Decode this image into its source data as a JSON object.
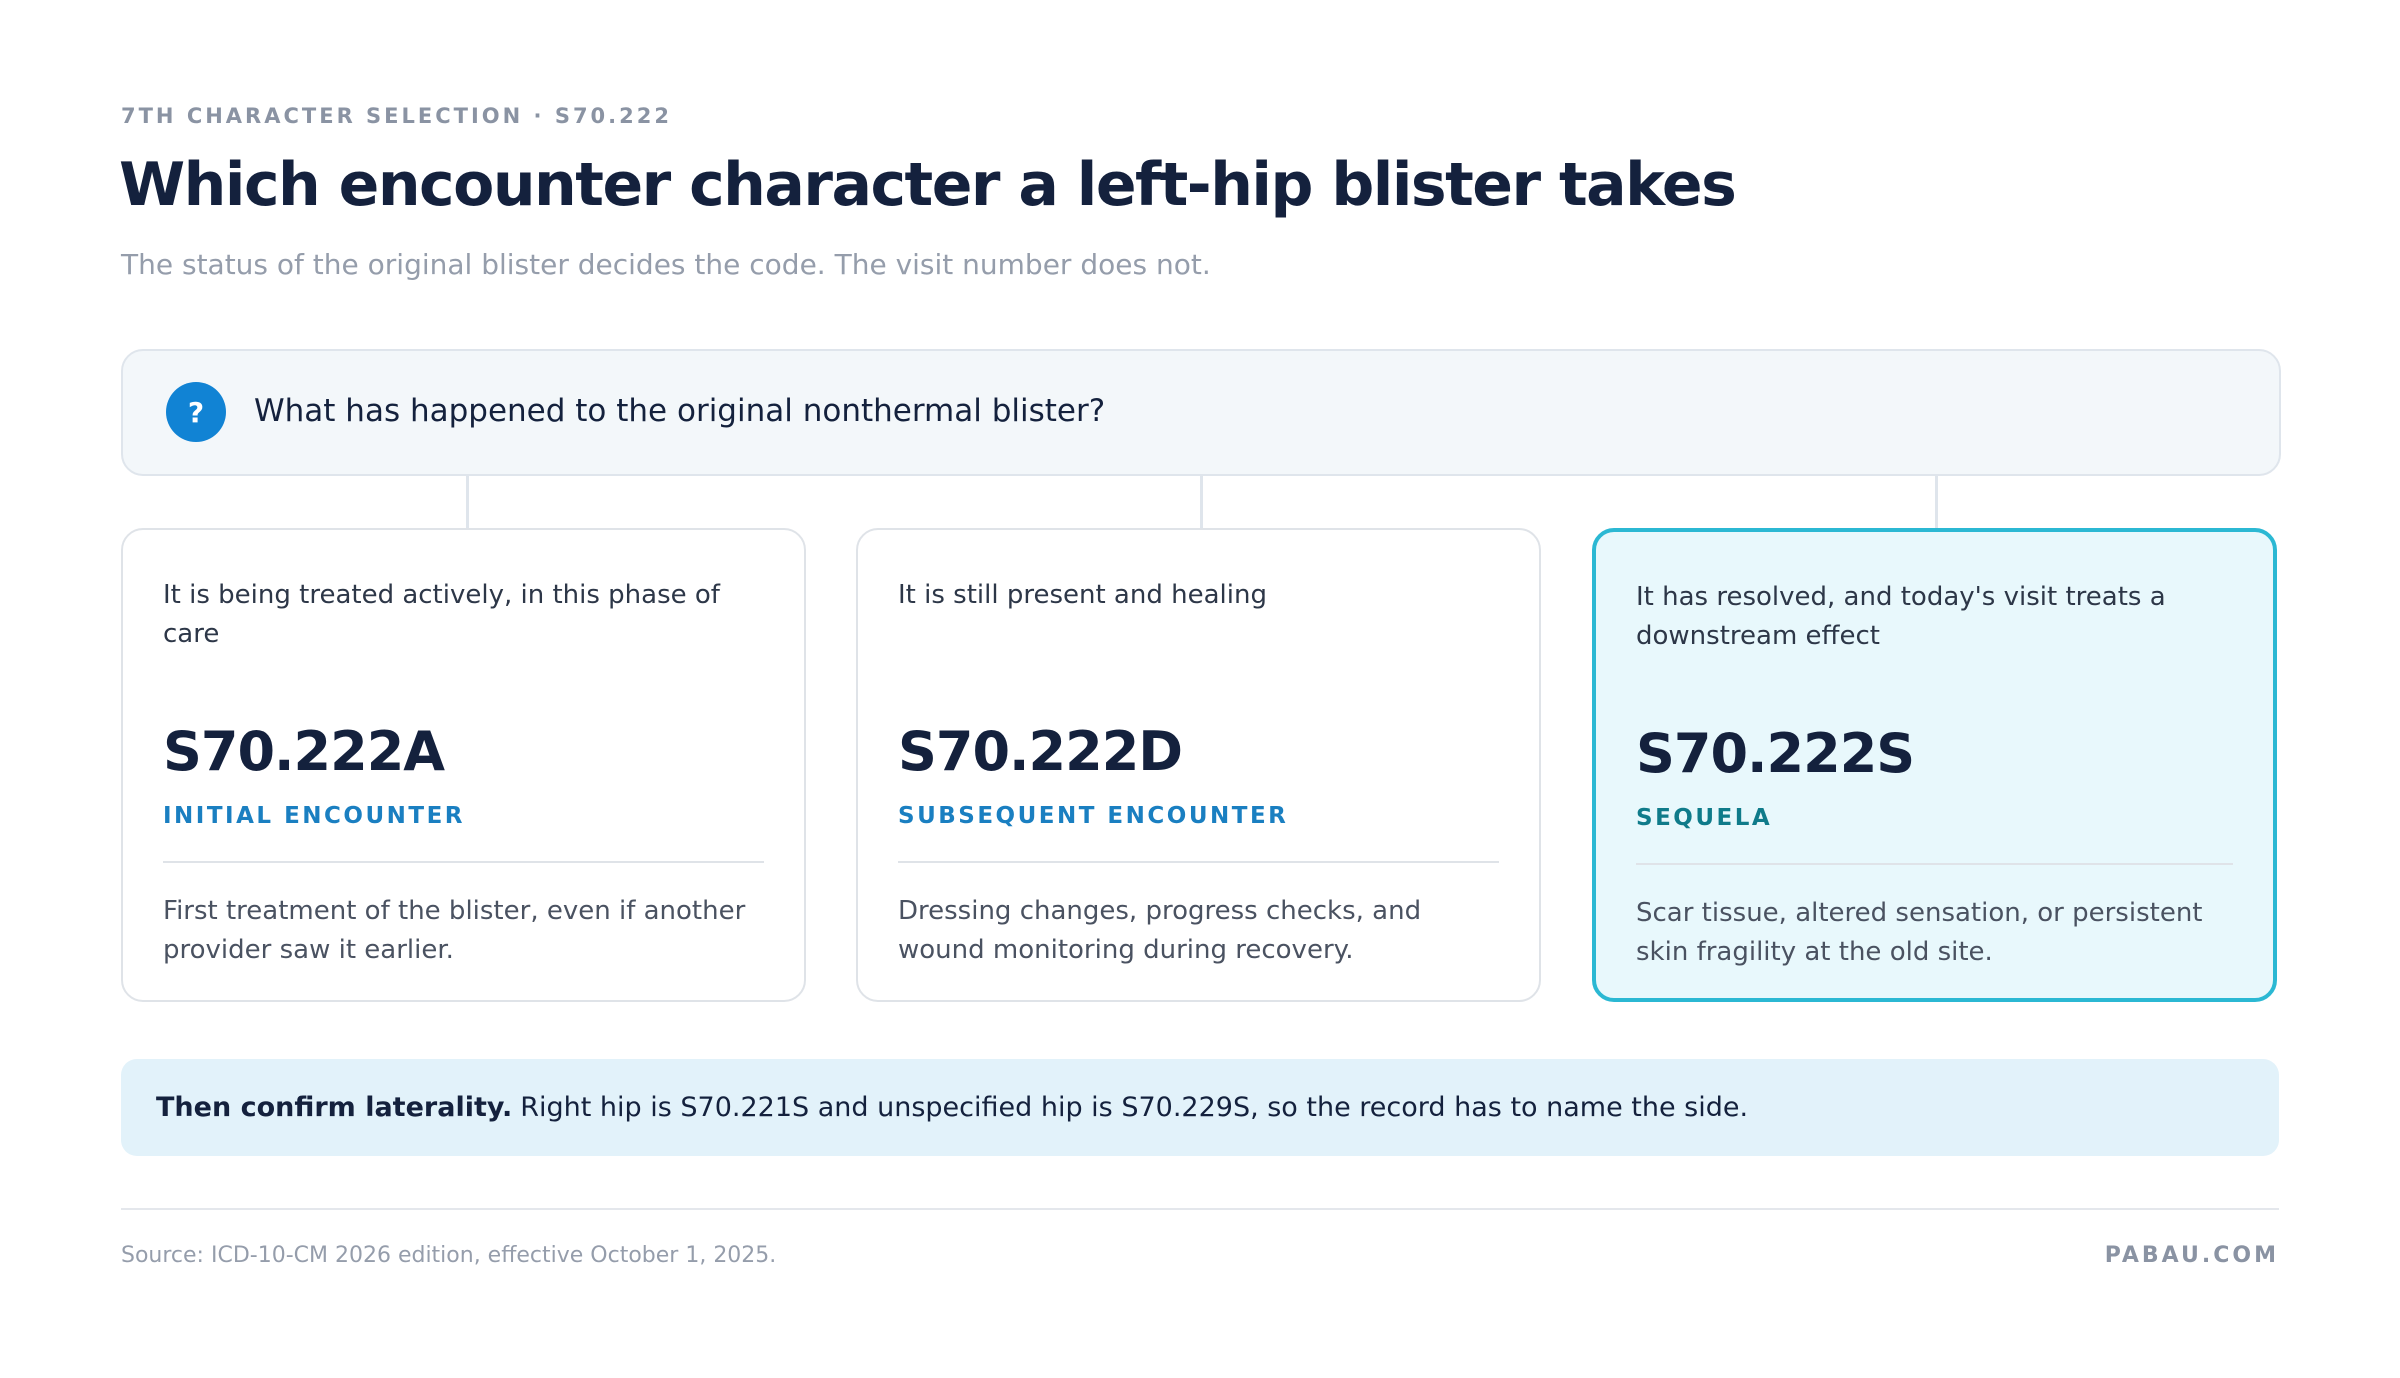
{
  "eyebrow": "7TH CHARACTER SELECTION · S70.222",
  "title": "Which encounter character a left-hip blister takes",
  "subtitle": "The status of the original blister decides the code. The visit number does not.",
  "question": {
    "icon": "?",
    "text": "What has happened to the original nonthermal blister?"
  },
  "cards": [
    {
      "condition": "It is being treated actively, in this phase of care",
      "code": "S70.222A",
      "label": "INITIAL ENCOUNTER",
      "description": "First treatment of the blister, even if another provider saw it earlier."
    },
    {
      "condition": "It is still present and healing",
      "code": "S70.222D",
      "label": "SUBSEQUENT ENCOUNTER",
      "description": "Dressing changes, progress checks, and wound monitoring during recovery."
    },
    {
      "condition": "It has resolved, and today's visit treats a downstream effect",
      "code": "S70.222S",
      "label": "SEQUELA",
      "description": "Scar tissue, altered sensation, or persistent skin fragility at the old site."
    }
  ],
  "note": {
    "bold": "Then confirm laterality.",
    "text": "Right hip is S70.221S and unspecified hip is S70.229S, so the record has to name the side."
  },
  "footer": {
    "source": "Source: ICD-10-CM 2026 edition, effective October 1, 2025.",
    "brand": "PABAU.COM"
  }
}
